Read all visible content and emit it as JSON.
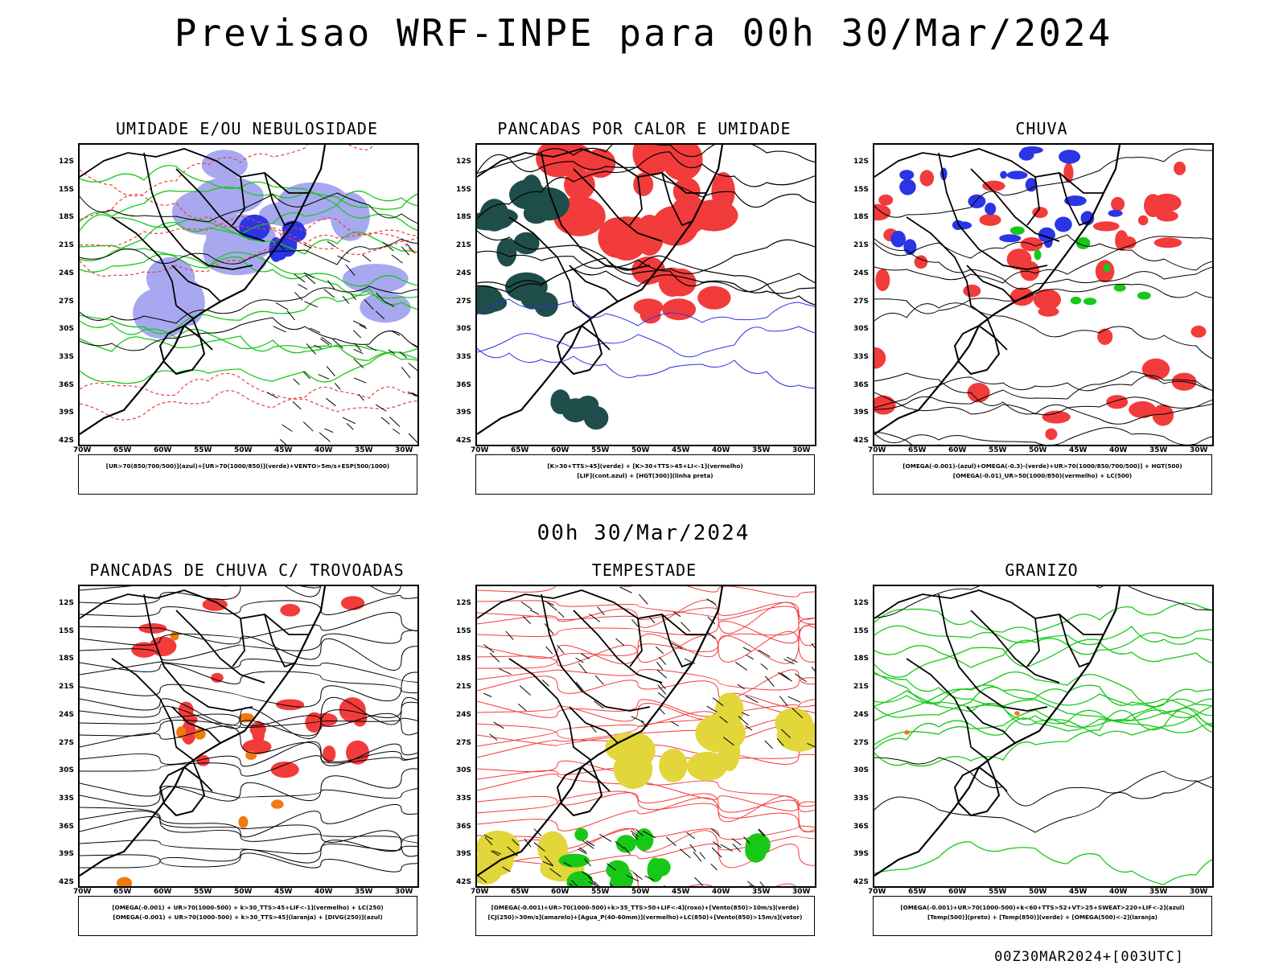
{
  "title": "Previsao WRF-INPE  para 00h 30/Mar/2024",
  "subtitle": "00h 30/Mar/2024",
  "footer": "00Z30MAR2024+[003UTC]",
  "lat_labels": [
    "12S",
    "15S",
    "18S",
    "21S",
    "24S",
    "27S",
    "30S",
    "33S",
    "36S",
    "39S",
    "42S"
  ],
  "lon_labels": [
    "70W",
    "65W",
    "60W",
    "55W",
    "50W",
    "45W",
    "40W",
    "35W",
    "30W"
  ],
  "panels": [
    {
      "title": "UMIDADE E/OU NEBULOSIDADE",
      "legend": [
        "[UR>70(850/700/500)](azul)+[UR>70(1000/850)](verde)+VENTO>5m/s+ESP(500/1000)"
      ]
    },
    {
      "title": "PANCADAS POR CALOR E UMIDADE",
      "legend": [
        "[K>30+TTS>45](verde) + [K>30+TTS>45+LI<-1](vermelho)",
        "[LIF](cont.azul) + [HGT(300)](linha preta)"
      ]
    },
    {
      "title": "CHUVA",
      "legend": [
        "[OMEGA(-0.001)-(azul)+OMEGA(-0.3)-(verde)+UR>70(1000/850/700/500)] + HGT(500)",
        "[OMEGA(-0.01)_UR>50(1000/850)(vermelho) + LC(500)"
      ]
    },
    {
      "title": "PANCADAS DE CHUVA C/ TROVOADAS",
      "legend": [
        "[OMEGA(-0.001) + UR>70(1000-500) + k>30_TTS>45+LIF<-1](vermelho) + LC(250)",
        "[OMEGA(-0.001) + UR>70(1000-500) + k>30_TTS>45](laranja) + [DIVG(250)](azul)"
      ]
    },
    {
      "title": "TEMPESTADE",
      "legend": [
        "[OMEGA(-0.001)+UR>70(1000-500)+k>35_TTS>50+LIF<-4](roxo)+[Vento(850)>10m/s](verde)",
        "[CJ(250)>30m/s](amarelo)+[Agua_P(40-60mm)](vermelho)+LC(850)+[Vento(850)>15m/s](vetor)"
      ]
    },
    {
      "title": "GRANIZO",
      "legend": [
        "[OMEGA(-0.001)+UR>70(1000-500)+k<60+TTS>52+VT>25+SWEAT>220+LIF<-2](azul)",
        "[Temp(500)](preto) + [Temp(850)](verde) + [OMEGA(500)<-2](laranja)"
      ]
    }
  ],
  "colors": {
    "red": "#f23b3b",
    "green": "#18c818",
    "blue": "#2a35e6",
    "lightblue": "#a8a8f0",
    "darkteal": "#1f4d4a",
    "yellow": "#e2d63a",
    "orange": "#f07a10"
  }
}
